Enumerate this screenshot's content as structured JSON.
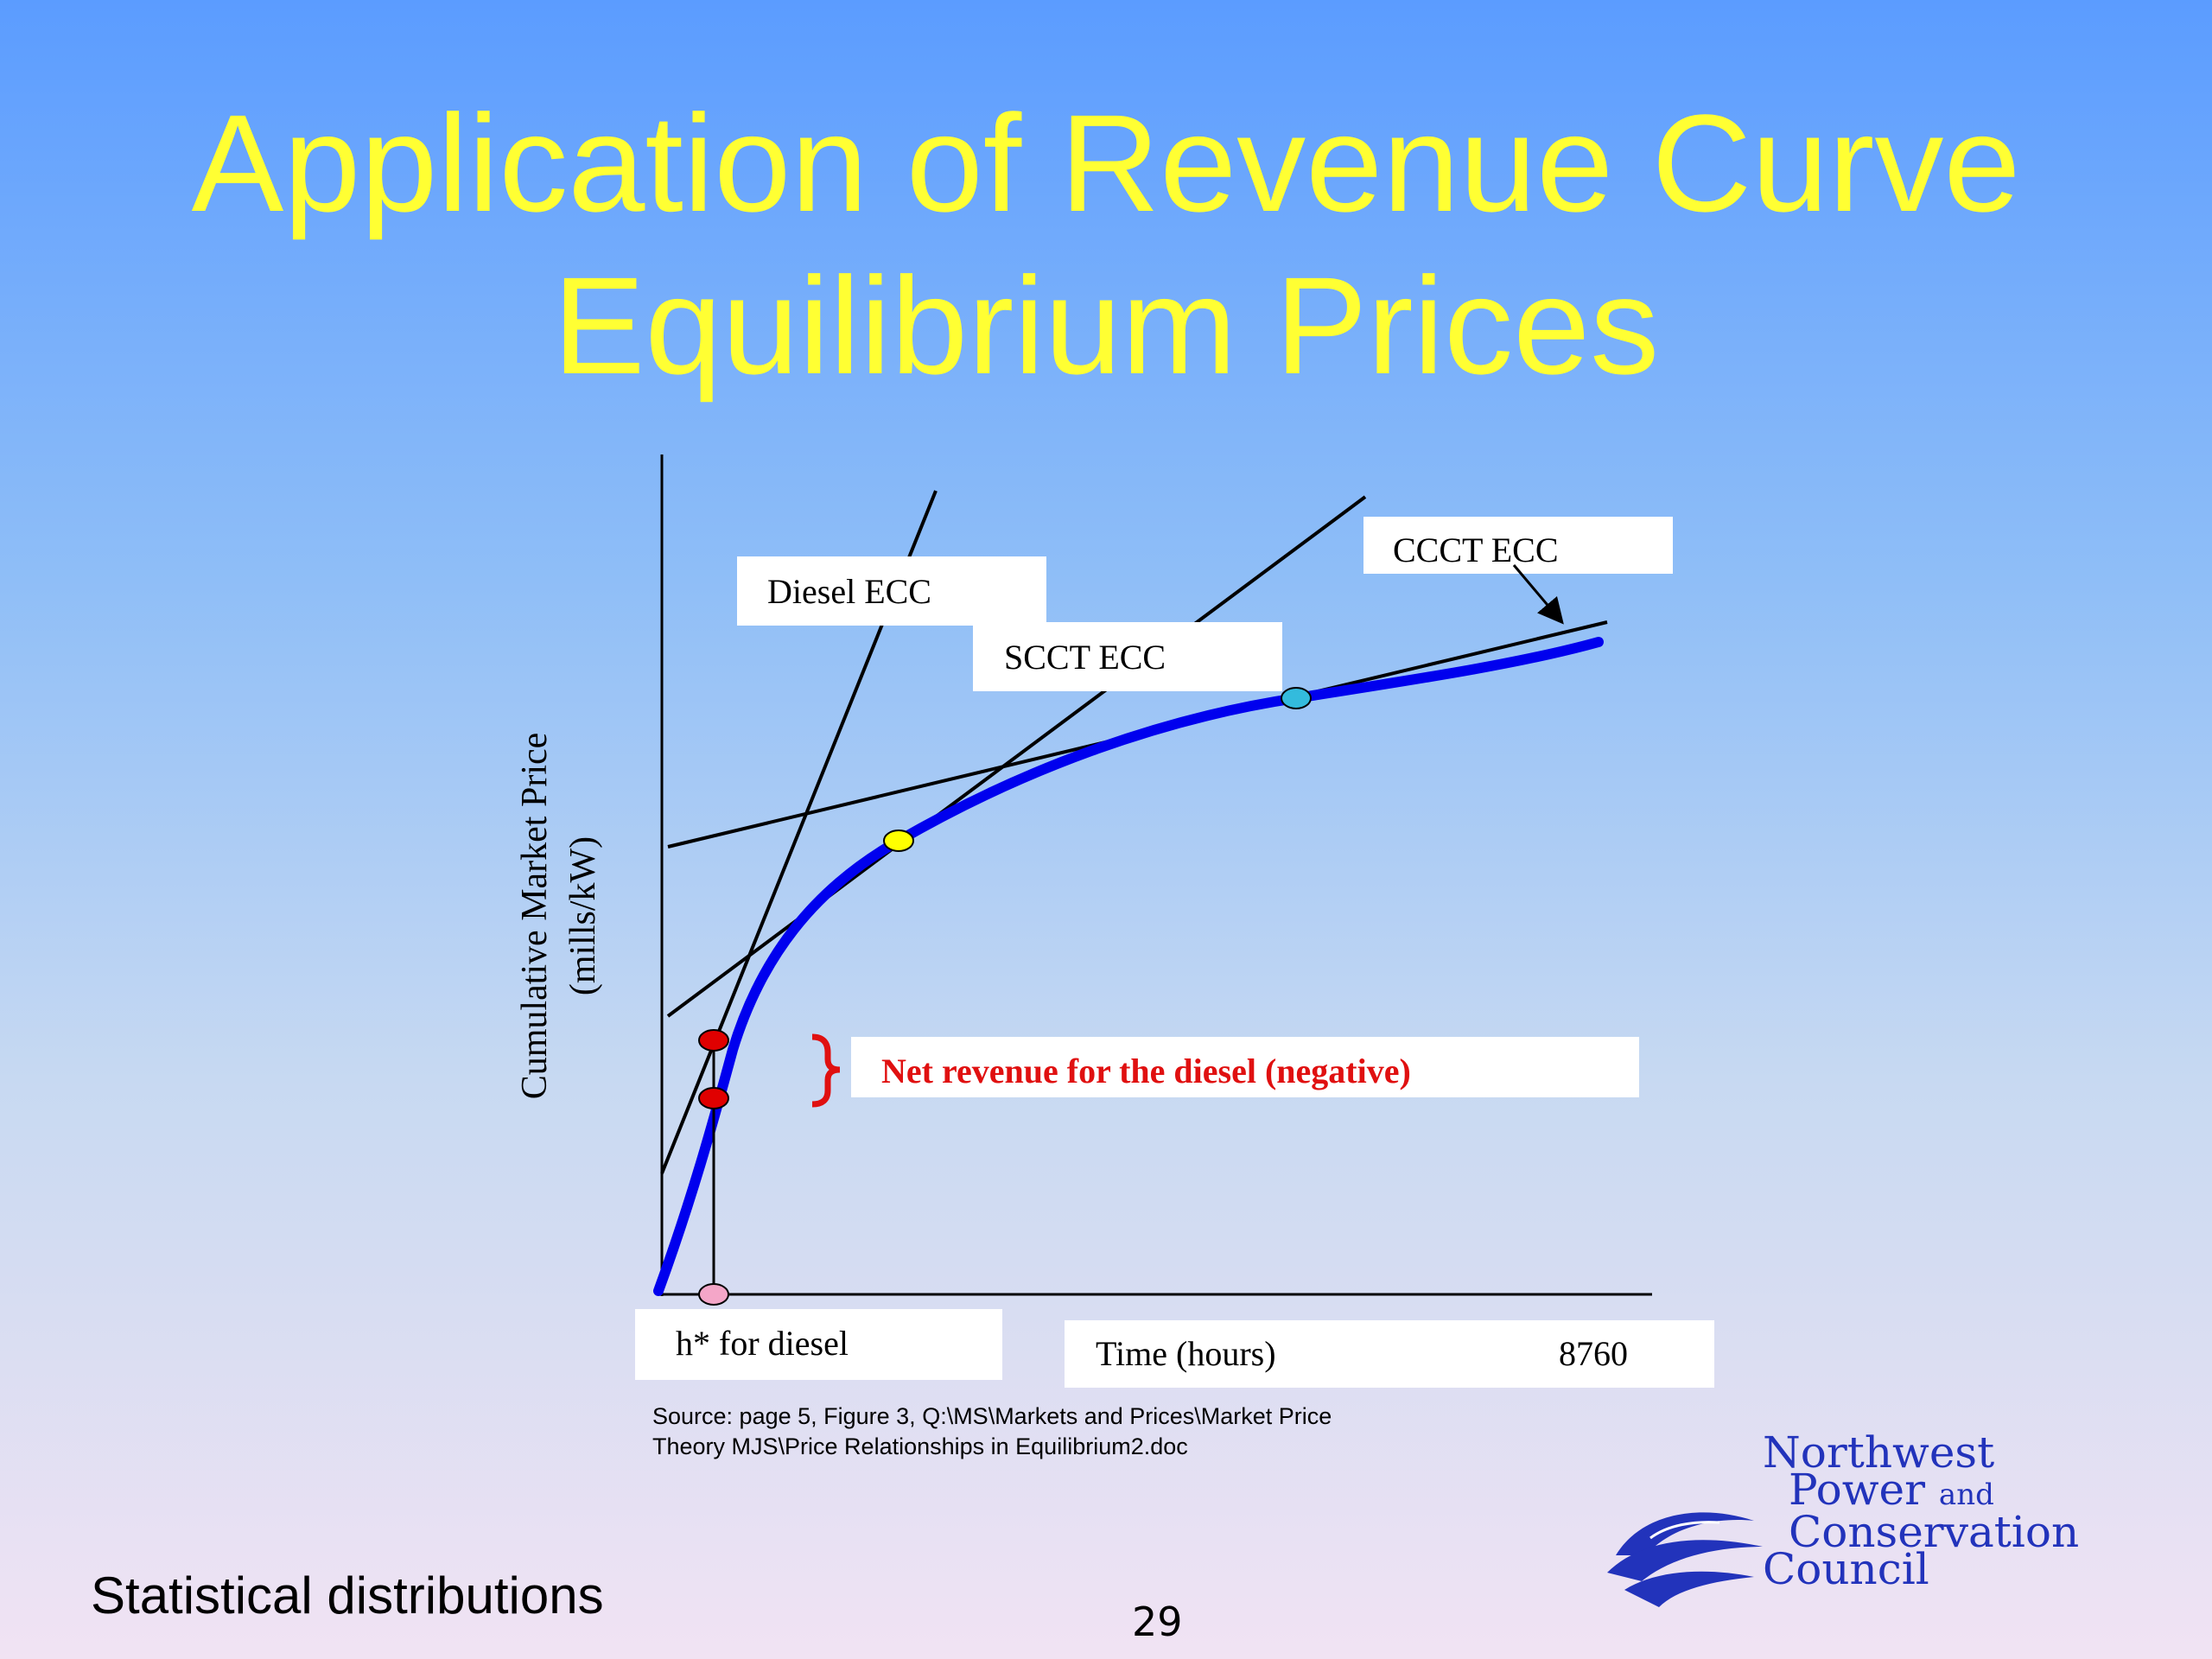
{
  "slide": {
    "title_line1": "Application of Revenue Curve",
    "title_line2": "Equilibrium Prices",
    "footer_left": "Statistical distributions",
    "page_number": "29"
  },
  "diagram": {
    "y_axis_label_line1": "Cumulative Market Price",
    "y_axis_label_line2": "(mills/kW)",
    "labels": {
      "diesel_ecc": "Diesel ECC",
      "scct_ecc": "SCCT ECC",
      "ccct_ecc": "CCCT ECC",
      "net_revenue": "Net revenue for the diesel (negative)",
      "h_star": "h* for diesel",
      "time_hours": "Time (hours)",
      "time_max": "8760"
    },
    "colors": {
      "revenue_curve": "#0000ee",
      "ecc_lines": "#000000",
      "net_revenue_text": "#e01010",
      "diesel_points": "#e00000",
      "scct_intersection": "#ffff00",
      "ccct_intersection": "#33bbdd",
      "h_star_marker": "#f4a6c8"
    }
  },
  "source": {
    "line1": "Source: page 5, Figure 3, Q:\\MS\\Markets and Prices\\Market Price",
    "line2": "Theory MJS\\Price Relationships in Equilibrium2.doc"
  },
  "logo": {
    "line1": "Northwest",
    "line2_main": "Power",
    "line2_small": "and",
    "line3": "Conservation",
    "line4": "Council"
  }
}
